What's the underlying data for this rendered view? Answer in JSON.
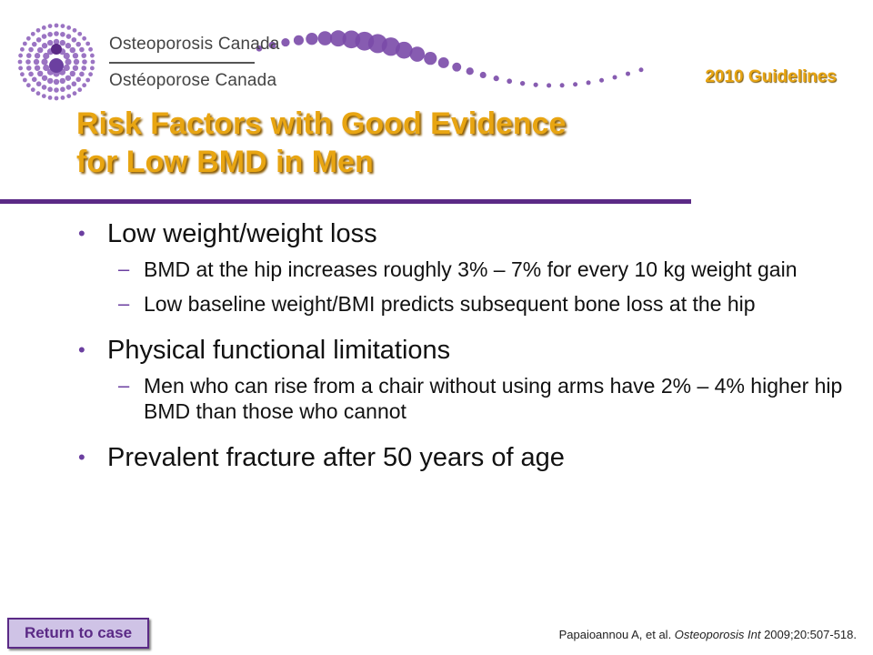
{
  "header": {
    "org_name_en": "Osteoporosis Canada",
    "org_name_fr": "Ostéoporose Canada",
    "guidelines_label": "2010 Guidelines"
  },
  "slide": {
    "title_line1": "Risk Factors with Good Evidence",
    "title_line2": "for Low BMD in Men"
  },
  "content": {
    "bullets": [
      {
        "text": "Low weight/weight loss",
        "subitems": [
          "BMD at the hip increases roughly 3% – 7% for every 10 kg weight gain",
          "Low baseline weight/BMI predicts subsequent bone loss at the hip"
        ]
      },
      {
        "text": "Physical functional limitations",
        "subitems": [
          "Men who can rise from a chair without using arms have 2% – 4% higher hip BMD than those who cannot"
        ]
      },
      {
        "text": "Prevalent fracture after 50 years of age",
        "subitems": []
      }
    ],
    "bullet_symbol": "•",
    "dash_symbol": "–"
  },
  "footer": {
    "return_button_label": "Return to case",
    "citation_authors": "Papaioannou A, et al. ",
    "citation_journal": "Osteoporosis Int",
    "citation_ref": " 2009;20:507-518."
  },
  "colors": {
    "title": "#e8a512",
    "accent_purple": "#5b2a86",
    "bullet": "#6b3fa0"
  },
  "icons": {
    "logo": "osteoporosis-canada-dot-figure-logo",
    "decoration": "purple-dot-wave"
  }
}
